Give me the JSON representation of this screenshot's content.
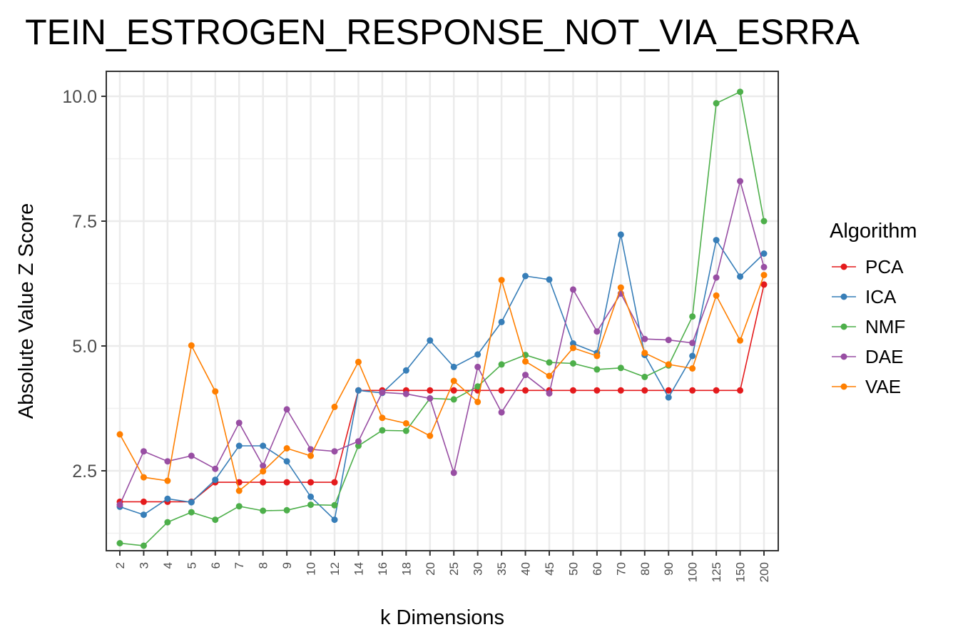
{
  "chart_data": {
    "type": "line",
    "title": "TEIN_ESTROGEN_RESPONSE_NOT_VIA_ESRRA",
    "xlabel": "k Dimensions",
    "ylabel": "Absolute Value Z Score",
    "legend_title": "Algorithm",
    "legend_position": "right",
    "grid": true,
    "ylim": [
      0.9,
      10.5
    ],
    "y_ticks": [
      2.5,
      5.0,
      7.5,
      10.0
    ],
    "y_tick_labels": [
      "2.5",
      "5.0",
      "7.5",
      "10.0"
    ],
    "categories": [
      "2",
      "3",
      "4",
      "5",
      "6",
      "7",
      "8",
      "9",
      "10",
      "12",
      "14",
      "16",
      "18",
      "20",
      "25",
      "30",
      "35",
      "40",
      "45",
      "50",
      "60",
      "70",
      "80",
      "90",
      "100",
      "125",
      "150",
      "200"
    ],
    "series": [
      {
        "name": "PCA",
        "color": "#e41a1c",
        "values": [
          1.88,
          1.88,
          1.88,
          1.88,
          2.27,
          2.27,
          2.27,
          2.27,
          2.27,
          2.27,
          4.11,
          4.11,
          4.11,
          4.11,
          4.11,
          4.11,
          4.11,
          4.11,
          4.11,
          4.11,
          4.11,
          4.11,
          4.11,
          4.11,
          4.11,
          4.11,
          4.11,
          6.23
        ]
      },
      {
        "name": "ICA",
        "color": "#377eb8",
        "values": [
          1.78,
          1.62,
          1.94,
          1.87,
          2.32,
          3.0,
          3.0,
          2.69,
          1.98,
          1.52,
          4.11,
          4.06,
          4.51,
          5.11,
          4.58,
          4.83,
          5.48,
          6.4,
          6.33,
          5.05,
          4.86,
          7.23,
          4.82,
          3.97,
          4.8,
          7.12,
          6.39,
          6.85
        ]
      },
      {
        "name": "NMF",
        "color": "#4daf4a",
        "values": [
          1.05,
          1.0,
          1.47,
          1.67,
          1.52,
          1.79,
          1.7,
          1.71,
          1.82,
          1.81,
          3.0,
          3.31,
          3.3,
          3.95,
          3.93,
          4.19,
          4.63,
          4.82,
          4.67,
          4.65,
          4.53,
          4.56,
          4.38,
          4.61,
          5.59,
          9.86,
          10.09,
          7.5
        ]
      },
      {
        "name": "DAE",
        "color": "#984ea3",
        "values": [
          1.82,
          2.89,
          2.69,
          2.8,
          2.54,
          3.46,
          2.6,
          3.73,
          2.93,
          2.89,
          3.09,
          4.07,
          4.04,
          3.95,
          2.46,
          4.58,
          3.67,
          4.42,
          4.05,
          6.13,
          5.29,
          6.05,
          5.14,
          5.12,
          5.06,
          6.37,
          8.3,
          6.58
        ]
      },
      {
        "name": "VAE",
        "color": "#ff7f00",
        "values": [
          3.23,
          2.37,
          2.3,
          5.01,
          4.09,
          2.1,
          2.49,
          2.95,
          2.8,
          3.78,
          4.68,
          3.56,
          3.45,
          3.2,
          4.3,
          3.88,
          6.32,
          4.69,
          4.4,
          4.96,
          4.8,
          6.17,
          4.86,
          4.63,
          4.55,
          6.01,
          5.11,
          6.42
        ]
      }
    ]
  }
}
